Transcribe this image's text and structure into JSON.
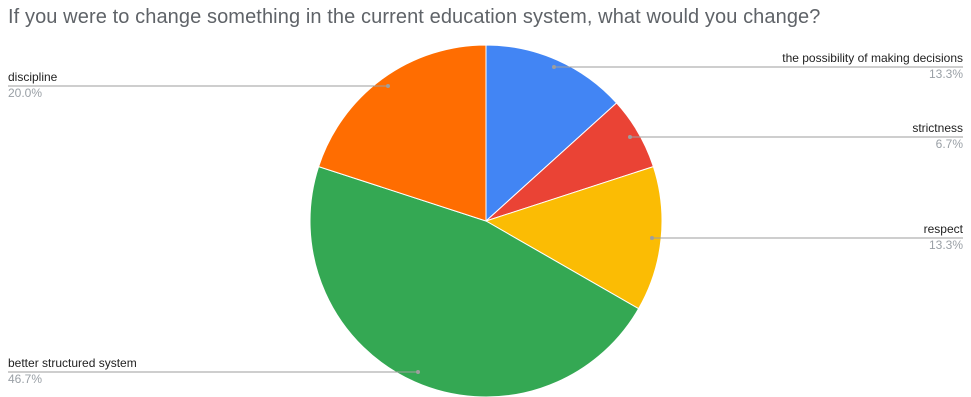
{
  "chart_data": {
    "type": "pie",
    "title": "If you were to change something in the current education system, what would you change?",
    "slices": [
      {
        "label": "the possibility of making decisions",
        "value": 13.3,
        "pct_label": "13.3%",
        "color": "#4285f4"
      },
      {
        "label": "strictness",
        "value": 6.7,
        "pct_label": "6.7%",
        "color": "#ea4335"
      },
      {
        "label": "respect",
        "value": 13.3,
        "pct_label": "13.3%",
        "color": "#fbbc04"
      },
      {
        "label": "better structured system",
        "value": 46.7,
        "pct_label": "46.7%",
        "color": "#34a853"
      },
      {
        "label": "discipline",
        "value": 20.0,
        "pct_label": "20.0%",
        "color": "#ff6d01"
      }
    ],
    "start_angle": "12 o'clock",
    "direction": "clockwise",
    "legend": "none"
  }
}
